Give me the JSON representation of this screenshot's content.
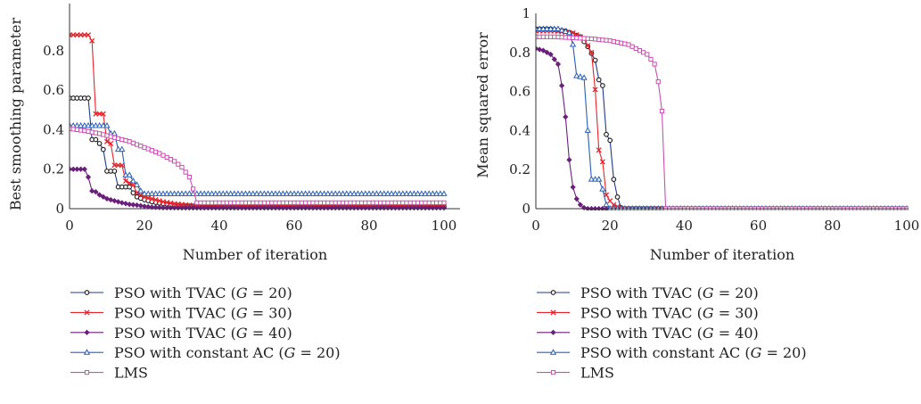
{
  "series_meta": [
    {
      "label_pre": "PSO with TVAC (",
      "label_var": "G",
      "label_post": " = 20)",
      "color": "#1a1a1a",
      "line": "#1f3a8c",
      "marker": "circle"
    },
    {
      "label_pre": "PSO with TVAC (",
      "label_var": "G",
      "label_post": " = 30)",
      "color": "#e8232a",
      "line": "#e8232a",
      "marker": "x"
    },
    {
      "label_pre": "PSO with TVAC (",
      "label_var": "G",
      "label_post": " = 40)",
      "color": "#6b1f7c",
      "line": "#6b1f7c",
      "marker": "diamond"
    },
    {
      "label_pre": "PSO with constant AC (",
      "label_var": "G",
      "label_post": " = 20)",
      "color": "#2a5fb4",
      "line": "#2a5fb4",
      "marker": "triangle"
    },
    {
      "label_pre": "LMS",
      "label_var": "",
      "label_post": "",
      "color": "#c94fb0",
      "line": "#c94fb0",
      "marker": "square"
    }
  ],
  "chart_data": [
    {
      "type": "line",
      "xlabel": "Number of iteration",
      "ylabel": "Best smoothing parameter",
      "xlim": [
        0,
        100
      ],
      "ylim": [
        0,
        0.9
      ],
      "xticks": [
        "0",
        "20",
        "40",
        "60",
        "80",
        "100"
      ],
      "yticks": [
        "0",
        "0.2",
        "0.4",
        "0.6",
        "0.8"
      ],
      "xtick_values": [
        0,
        20,
        40,
        60,
        80,
        100
      ],
      "ytick_values": [
        0,
        0.2,
        0.4,
        0.6,
        0.8
      ],
      "series": [
        {
          "points": [
            [
              0,
              0.56
            ],
            [
              5,
              0.56
            ],
            [
              6,
              0.35
            ],
            [
              7,
              0.35
            ],
            [
              8,
              0.33
            ],
            [
              9,
              0.3
            ],
            [
              10,
              0.19
            ],
            [
              12,
              0.19
            ],
            [
              13,
              0.11
            ],
            [
              16,
              0.11
            ],
            [
              17,
              0.08
            ],
            [
              18,
              0.06
            ],
            [
              20,
              0.045
            ],
            [
              22,
              0.035
            ],
            [
              24,
              0.028
            ],
            [
              27,
              0.02
            ],
            [
              30,
              0.015
            ],
            [
              35,
              0.012
            ],
            [
              40,
              0.01
            ],
            [
              100,
              0.01
            ]
          ]
        },
        {
          "points": [
            [
              0,
              0.88
            ],
            [
              5,
              0.88
            ],
            [
              6,
              0.85
            ],
            [
              7,
              0.48
            ],
            [
              9,
              0.48
            ],
            [
              10,
              0.34
            ],
            [
              11,
              0.33
            ],
            [
              12,
              0.22
            ],
            [
              14,
              0.22
            ],
            [
              15,
              0.14
            ],
            [
              16,
              0.13
            ],
            [
              17,
              0.12
            ],
            [
              18,
              0.08
            ],
            [
              20,
              0.06
            ],
            [
              22,
              0.05
            ],
            [
              25,
              0.035
            ],
            [
              28,
              0.025
            ],
            [
              32,
              0.018
            ],
            [
              36,
              0.014
            ],
            [
              40,
              0.012
            ],
            [
              100,
              0.012
            ]
          ]
        },
        {
          "points": [
            [
              0,
              0.2
            ],
            [
              4,
              0.2
            ],
            [
              5,
              0.16
            ],
            [
              6,
              0.09
            ],
            [
              7,
              0.085
            ],
            [
              8,
              0.07
            ],
            [
              9,
              0.06
            ],
            [
              10,
              0.05
            ],
            [
              12,
              0.04
            ],
            [
              14,
              0.03
            ],
            [
              16,
              0.022
            ],
            [
              18,
              0.018
            ],
            [
              20,
              0.012
            ],
            [
              22,
              0.008
            ],
            [
              25,
              0.005
            ],
            [
              30,
              0.004
            ],
            [
              100,
              0.004
            ]
          ]
        },
        {
          "points": [
            [
              0,
              0.42
            ],
            [
              10,
              0.42
            ],
            [
              11,
              0.38
            ],
            [
              12,
              0.38
            ],
            [
              13,
              0.3
            ],
            [
              14,
              0.3
            ],
            [
              15,
              0.17
            ],
            [
              16,
              0.17
            ],
            [
              17,
              0.14
            ],
            [
              18,
              0.12
            ],
            [
              19,
              0.09
            ],
            [
              20,
              0.075
            ],
            [
              100,
              0.075
            ]
          ]
        },
        {
          "points": [
            [
              0,
              0.405
            ],
            [
              4,
              0.395
            ],
            [
              8,
              0.38
            ],
            [
              12,
              0.36
            ],
            [
              16,
              0.34
            ],
            [
              20,
              0.31
            ],
            [
              24,
              0.28
            ],
            [
              28,
              0.24
            ],
            [
              30,
              0.21
            ],
            [
              32,
              0.16
            ],
            [
              33,
              0.1
            ],
            [
              34,
              0.03
            ],
            [
              100,
              0.03
            ]
          ]
        }
      ]
    },
    {
      "type": "line",
      "xlabel": "Number of iteration",
      "ylabel": "Mean squared error",
      "xlim": [
        0,
        100
      ],
      "ylim": [
        0,
        1
      ],
      "xticks": [
        "0",
        "20",
        "40",
        "60",
        "80",
        "100"
      ],
      "yticks": [
        "0",
        "0.2",
        "0.4",
        "0.6",
        "0.8",
        "1"
      ],
      "xtick_values": [
        0,
        20,
        40,
        60,
        80,
        100
      ],
      "ytick_values": [
        0,
        0.2,
        0.4,
        0.6,
        0.8,
        1
      ],
      "series": [
        {
          "points": [
            [
              0,
              0.92
            ],
            [
              4,
              0.92
            ],
            [
              8,
              0.91
            ],
            [
              12,
              0.88
            ],
            [
              14,
              0.83
            ],
            [
              16,
              0.76
            ],
            [
              17,
              0.66
            ],
            [
              18,
              0.63
            ],
            [
              19,
              0.38
            ],
            [
              20,
              0.35
            ],
            [
              21,
              0.15
            ],
            [
              22,
              0.06
            ],
            [
              23,
              0.005
            ],
            [
              24,
              0
            ],
            [
              100,
              0
            ]
          ]
        },
        {
          "points": [
            [
              0,
              0.91
            ],
            [
              5,
              0.91
            ],
            [
              10,
              0.9
            ],
            [
              13,
              0.87
            ],
            [
              15,
              0.8
            ],
            [
              16,
              0.61
            ],
            [
              17,
              0.3
            ],
            [
              18,
              0.24
            ],
            [
              19,
              0.07
            ],
            [
              20,
              0.04
            ],
            [
              21,
              0.02
            ],
            [
              22,
              0.01
            ],
            [
              23,
              0
            ],
            [
              100,
              0
            ]
          ]
        },
        {
          "points": [
            [
              0,
              0.82
            ],
            [
              2,
              0.81
            ],
            [
              4,
              0.79
            ],
            [
              6,
              0.74
            ],
            [
              7,
              0.63
            ],
            [
              8,
              0.47
            ],
            [
              9,
              0.25
            ],
            [
              10,
              0.11
            ],
            [
              11,
              0.05
            ],
            [
              12,
              0.02
            ],
            [
              13,
              0.005
            ],
            [
              14,
              0
            ],
            [
              100,
              0
            ]
          ]
        },
        {
          "points": [
            [
              0,
              0.92
            ],
            [
              6,
              0.92
            ],
            [
              9,
              0.9
            ],
            [
              10,
              0.84
            ],
            [
              11,
              0.68
            ],
            [
              13,
              0.67
            ],
            [
              14,
              0.4
            ],
            [
              15,
              0.15
            ],
            [
              17,
              0.15
            ],
            [
              18,
              0.1
            ],
            [
              19,
              0.02
            ],
            [
              20,
              0
            ],
            [
              100,
              0
            ]
          ]
        },
        {
          "points": [
            [
              0,
              0.88
            ],
            [
              5,
              0.88
            ],
            [
              10,
              0.875
            ],
            [
              15,
              0.87
            ],
            [
              20,
              0.86
            ],
            [
              25,
              0.84
            ],
            [
              30,
              0.79
            ],
            [
              32,
              0.74
            ],
            [
              33,
              0.65
            ],
            [
              34,
              0.5
            ],
            [
              35,
              0
            ],
            [
              100,
              0
            ]
          ]
        }
      ]
    }
  ]
}
